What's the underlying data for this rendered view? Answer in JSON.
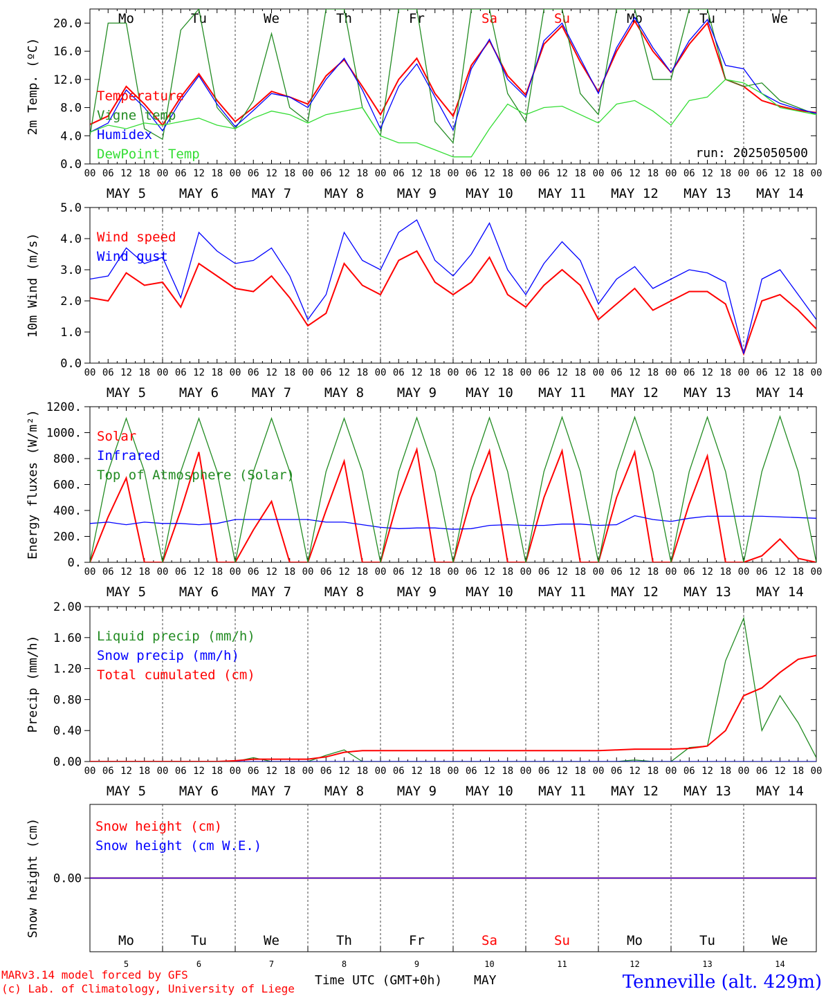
{
  "colors": {
    "red": "#ff0000",
    "green": "#228b22",
    "blue": "#0000ff",
    "lime": "#33dd33",
    "axis": "#000000"
  },
  "day_abbrevs": [
    "Mo",
    "Tu",
    "We",
    "Th",
    "Fr",
    "Sa",
    "Su",
    "Mo",
    "Tu",
    "We"
  ],
  "weekend_days": [
    "Sa",
    "Su"
  ],
  "date_labels": [
    "MAY  5",
    "MAY  6",
    "MAY  7",
    "MAY  8",
    "MAY  9",
    "MAY 10",
    "MAY 11",
    "MAY 12",
    "MAY 13",
    "MAY 14"
  ],
  "hour_ticks": [
    "00",
    "06",
    "12",
    "18"
  ],
  "day_numbers": [
    "5",
    "6",
    "7",
    "8",
    "9",
    "10",
    "11",
    "12",
    "13",
    "14"
  ],
  "run_label": "run: 2025050500",
  "footer": {
    "model": "MARv3.14 model forced by GFS",
    "lab": "(c) Lab. of Climatology, University of Liege",
    "xlabel": "Time UTC (GMT+0h)",
    "month": "MAY",
    "station": "Tenneville (alt. 429m)"
  },
  "chart_data": [
    {
      "type": "line",
      "ylabel": "2m Temp. (ºC)",
      "ylim": [
        0,
        22
      ],
      "yticks": [
        "0.0",
        "4.0",
        "8.0",
        "12.0",
        "16.0",
        "20.0"
      ],
      "x_hours": [
        0,
        6,
        12,
        18,
        24,
        30,
        36,
        42,
        48,
        54,
        60,
        66,
        72,
        78,
        84,
        90,
        96,
        102,
        108,
        114,
        120,
        126,
        132,
        138,
        144,
        150,
        156,
        162,
        168,
        174,
        180,
        186,
        192,
        198,
        204,
        210,
        216,
        222,
        228,
        234,
        240
      ],
      "series": [
        {
          "name": "Temperature",
          "color": "red",
          "values": [
            5.6,
            6.8,
            11.0,
            8.5,
            5.5,
            9.5,
            12.8,
            9.0,
            6.0,
            8.0,
            10.3,
            9.5,
            8.5,
            12.5,
            14.8,
            11.0,
            7.0,
            12.0,
            15.0,
            10.0,
            6.8,
            14.0,
            17.5,
            12.5,
            9.8,
            17.0,
            19.6,
            14.5,
            10.2,
            16.0,
            20.3,
            16.0,
            13.0,
            17.0,
            20.0,
            12.0,
            11.0,
            9.0,
            8.2,
            7.6,
            7.3
          ]
        },
        {
          "name": "Vigne temp",
          "color": "green",
          "values": [
            4.0,
            20.0,
            20.0,
            5.0,
            3.5,
            19.0,
            22.0,
            8.0,
            5.0,
            9.0,
            18.5,
            8.0,
            6.0,
            22.0,
            22.0,
            8.0,
            4.0,
            22.0,
            22.0,
            6.0,
            3.0,
            22.0,
            22.0,
            10.0,
            6.0,
            22.0,
            22.0,
            10.0,
            7.0,
            22.0,
            22.0,
            12.0,
            12.0,
            22.0,
            22.0,
            12.0,
            11.0,
            11.5,
            9.0,
            8.0,
            7.0
          ]
        },
        {
          "name": "Humidex",
          "color": "blue",
          "values": [
            4.5,
            5.8,
            10.5,
            8.0,
            4.7,
            9.0,
            12.5,
            8.5,
            5.3,
            7.6,
            10.0,
            9.5,
            8.0,
            12.0,
            15.0,
            10.5,
            5.0,
            11.0,
            14.2,
            9.5,
            4.8,
            13.5,
            17.7,
            12.0,
            9.5,
            17.5,
            20.0,
            15.0,
            10.0,
            16.5,
            20.8,
            16.5,
            13.0,
            17.5,
            20.5,
            14.0,
            13.5,
            10.0,
            8.6,
            7.8,
            7.2
          ]
        },
        {
          "name": "DewPoint Temp",
          "color": "lime",
          "values": [
            4.5,
            5.5,
            5.0,
            5.8,
            5.5,
            6.0,
            6.5,
            5.5,
            5.0,
            6.5,
            7.5,
            7.0,
            5.8,
            7.0,
            7.5,
            8.0,
            4.0,
            3.0,
            3.0,
            2.0,
            1.0,
            1.0,
            5.0,
            8.5,
            7.0,
            8.0,
            8.2,
            7.0,
            5.8,
            8.5,
            9.0,
            7.5,
            5.5,
            9.0,
            9.5,
            12.0,
            11.5,
            10.0,
            8.0,
            7.5,
            7.0
          ]
        }
      ]
    },
    {
      "type": "line",
      "ylabel": "10m Wind (m/s)",
      "ylim": [
        0,
        5
      ],
      "yticks": [
        "0.0",
        "1.0",
        "2.0",
        "3.0",
        "4.0",
        "5.0"
      ],
      "x_hours": [
        0,
        6,
        12,
        18,
        24,
        30,
        36,
        42,
        48,
        54,
        60,
        66,
        72,
        78,
        84,
        90,
        96,
        102,
        108,
        114,
        120,
        126,
        132,
        138,
        144,
        150,
        156,
        162,
        168,
        174,
        180,
        186,
        192,
        198,
        204,
        210,
        216,
        222,
        228,
        234,
        240
      ],
      "series": [
        {
          "name": "Wind speed",
          "color": "red",
          "values": [
            2.1,
            2.0,
            2.9,
            2.5,
            2.6,
            1.8,
            3.2,
            2.8,
            2.4,
            2.3,
            2.8,
            2.1,
            1.2,
            1.6,
            3.2,
            2.5,
            2.2,
            3.3,
            3.6,
            2.6,
            2.2,
            2.6,
            3.4,
            2.2,
            1.8,
            2.5,
            3.0,
            2.5,
            1.4,
            1.9,
            2.4,
            1.7,
            2.0,
            2.3,
            2.3,
            1.9,
            0.3,
            2.0,
            2.2,
            1.7,
            1.1
          ]
        },
        {
          "name": "Wind gust",
          "color": "blue",
          "values": [
            2.7,
            2.8,
            3.7,
            3.2,
            3.4,
            2.1,
            4.2,
            3.6,
            3.2,
            3.3,
            3.7,
            2.8,
            1.4,
            2.2,
            4.2,
            3.3,
            3.0,
            4.2,
            4.6,
            3.3,
            2.8,
            3.5,
            4.5,
            3.0,
            2.2,
            3.2,
            3.9,
            3.3,
            1.9,
            2.7,
            3.1,
            2.4,
            2.7,
            3.0,
            2.9,
            2.6,
            0.3,
            2.7,
            3.0,
            2.2,
            1.4
          ]
        }
      ]
    },
    {
      "type": "area",
      "ylabel": "Energy fluxes (W/m²)",
      "ylim": [
        0,
        1200
      ],
      "yticks": [
        "0.",
        "200.",
        "400.",
        "600.",
        "800.",
        "1000.",
        "1200."
      ],
      "x_hours": [
        0,
        6,
        12,
        18,
        24,
        30,
        36,
        42,
        48,
        54,
        60,
        66,
        72,
        78,
        84,
        90,
        96,
        102,
        108,
        114,
        120,
        126,
        132,
        138,
        144,
        150,
        156,
        162,
        168,
        174,
        180,
        186,
        192,
        198,
        204,
        210,
        216,
        222,
        228,
        234,
        240
      ],
      "series": [
        {
          "name": "Solar",
          "color": "red",
          "values": [
            0,
            350,
            650,
            0,
            0,
            400,
            850,
            0,
            0,
            250,
            470,
            0,
            0,
            400,
            780,
            0,
            0,
            500,
            870,
            0,
            0,
            500,
            860,
            0,
            0,
            500,
            860,
            0,
            0,
            500,
            850,
            0,
            0,
            450,
            820,
            0,
            0,
            50,
            180,
            30,
            0
          ]
        },
        {
          "name": "Infrared",
          "color": "blue",
          "values": [
            300,
            310,
            290,
            310,
            300,
            300,
            290,
            300,
            330,
            330,
            330,
            330,
            330,
            310,
            310,
            290,
            270,
            260,
            265,
            265,
            255,
            260,
            285,
            290,
            285,
            285,
            295,
            295,
            285,
            290,
            360,
            330,
            315,
            340,
            355,
            355,
            355,
            355,
            350,
            345,
            340
          ]
        },
        {
          "name": "Top of Atmosphere (Solar)",
          "color": "green",
          "values": [
            0,
            700,
            1110,
            700,
            0,
            700,
            1110,
            700,
            0,
            700,
            1110,
            700,
            0,
            700,
            1110,
            700,
            0,
            700,
            1115,
            700,
            0,
            700,
            1115,
            700,
            0,
            700,
            1120,
            700,
            0,
            700,
            1120,
            700,
            0,
            700,
            1120,
            700,
            0,
            700,
            1125,
            700,
            0
          ]
        }
      ]
    },
    {
      "type": "line",
      "ylabel": "Precip (mm/h)",
      "ylim": [
        0,
        2.0
      ],
      "yticks": [
        "0.00",
        "0.40",
        "0.80",
        "1.20",
        "1.60",
        "2.00"
      ],
      "x_hours": [
        0,
        6,
        12,
        18,
        24,
        30,
        36,
        42,
        48,
        54,
        60,
        66,
        72,
        78,
        84,
        90,
        96,
        102,
        108,
        114,
        120,
        126,
        132,
        138,
        144,
        150,
        156,
        162,
        168,
        174,
        180,
        186,
        192,
        198,
        204,
        210,
        216,
        222,
        228,
        234,
        240
      ],
      "series": [
        {
          "name": "Liquid precip (mm/h)",
          "color": "green",
          "values": [
            0,
            0,
            0,
            0,
            0,
            0,
            0,
            0,
            0,
            0.05,
            0,
            0,
            0,
            0.08,
            0.15,
            0,
            0,
            0,
            0,
            0,
            0,
            0,
            0,
            0,
            0,
            0,
            0,
            0,
            0,
            0,
            0.02,
            0,
            0,
            0.18,
            0.2,
            1.3,
            1.85,
            0.4,
            0.85,
            0.5,
            0.05
          ]
        },
        {
          "name": "Snow precip (mm/h)",
          "color": "blue",
          "values": [
            0,
            0,
            0,
            0,
            0,
            0,
            0,
            0,
            0,
            0,
            0,
            0,
            0,
            0,
            0,
            0,
            0,
            0,
            0,
            0,
            0,
            0,
            0,
            0,
            0,
            0,
            0,
            0,
            0,
            0,
            0,
            0,
            0,
            0,
            0,
            0,
            0,
            0,
            0,
            0,
            0
          ]
        },
        {
          "name": "Total cumulated (cm)",
          "color": "red",
          "values": [
            0,
            0,
            0,
            0,
            0,
            0,
            0,
            0,
            0.01,
            0.03,
            0.03,
            0.03,
            0.03,
            0.06,
            0.12,
            0.14,
            0.14,
            0.14,
            0.14,
            0.14,
            0.14,
            0.14,
            0.14,
            0.14,
            0.14,
            0.14,
            0.14,
            0.14,
            0.14,
            0.15,
            0.16,
            0.16,
            0.16,
            0.17,
            0.2,
            0.4,
            0.85,
            0.95,
            1.15,
            1.32,
            1.37
          ]
        }
      ]
    },
    {
      "type": "line",
      "ylabel": "Snow height (cm)",
      "ylim": [
        -1,
        1
      ],
      "yticks": [
        "0.00"
      ],
      "x_hours": [
        0,
        240
      ],
      "series": [
        {
          "name": "Snow height (cm)",
          "color": "red",
          "values": [
            0,
            0
          ]
        },
        {
          "name": "Snow height (cm W.E.)",
          "color": "blue",
          "values": [
            0,
            0
          ]
        }
      ]
    }
  ]
}
